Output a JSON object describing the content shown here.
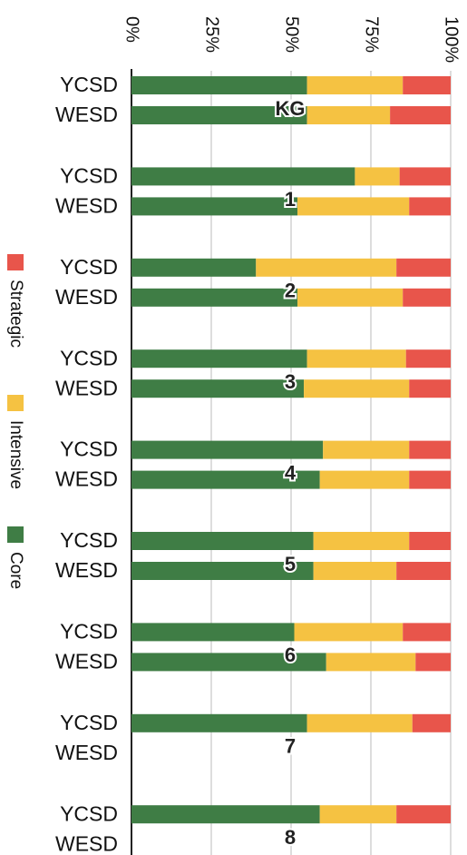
{
  "chart_data": {
    "type": "stacked-bar-horizontal",
    "categories": [
      "YCSD",
      "WESD",
      "YCSD",
      "WESD",
      "YCSD",
      "WESD",
      "YCSD",
      "WESD",
      "YCSD",
      "WESD",
      "YCSD",
      "WESD",
      "YCSD",
      "WESD",
      "YCSD",
      "WESD",
      "YCSD",
      "WESD"
    ],
    "groups": [
      "KG",
      "1",
      "2",
      "3",
      "4",
      "5",
      "6",
      "7",
      "8"
    ],
    "series": [
      {
        "name": "Core",
        "color": "#3f7d45",
        "values": [
          55,
          55,
          70,
          52,
          39,
          52,
          55,
          54,
          60,
          59,
          57,
          57,
          51,
          61,
          55,
          null,
          59,
          null
        ]
      },
      {
        "name": "Intensive",
        "color": "#f5c242",
        "values": [
          30,
          26,
          14,
          35,
          44,
          33,
          31,
          33,
          27,
          28,
          30,
          26,
          34,
          28,
          33,
          null,
          24,
          null
        ]
      },
      {
        "name": "Strategic",
        "color": "#e8554b",
        "values": [
          15,
          19,
          16,
          13,
          17,
          15,
          14,
          13,
          13,
          13,
          13,
          17,
          15,
          11,
          12,
          null,
          17,
          null
        ]
      }
    ],
    "xlim": [
      0,
      100
    ],
    "xticks": [
      {
        "value": 0,
        "label": "0%"
      },
      {
        "value": 25,
        "label": "25%"
      },
      {
        "value": 50,
        "label": "50%"
      },
      {
        "value": 75,
        "label": "75%"
      },
      {
        "value": 100,
        "label": "100%"
      }
    ],
    "grid": true,
    "legend": "left"
  }
}
